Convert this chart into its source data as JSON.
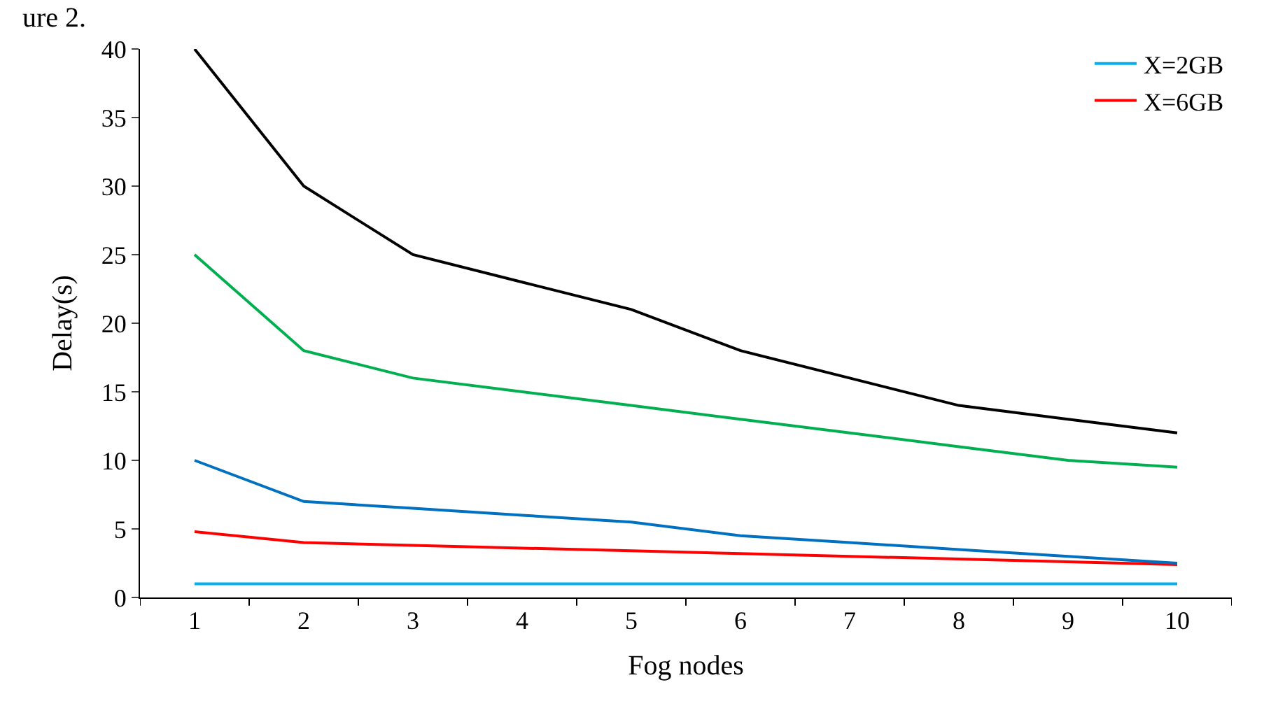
{
  "chart_data": {
    "type": "line",
    "xlabel": "Fog nodes",
    "ylabel": "Delay(s)",
    "annotations": [
      "ure 2."
    ],
    "categories": [
      "1",
      "2",
      "3",
      "4",
      "5",
      "6",
      "7",
      "8",
      "9",
      "10"
    ],
    "ylim": [
      0,
      40
    ],
    "yticks": [
      0,
      5,
      10,
      15,
      20,
      25,
      30,
      35,
      40
    ],
    "legend": "top right",
    "marker": "none",
    "line_style": "solid",
    "series": [
      {
        "name": "X=2GB",
        "color": "#00b0f0",
        "values": [
          1,
          1,
          1,
          1,
          1,
          1,
          1,
          1,
          1,
          1
        ]
      },
      {
        "name": "X=6GB",
        "color": "#ff0000",
        "values": [
          4.8,
          4,
          3.8,
          3.6,
          3.4,
          3.2,
          3,
          2.8,
          2.6,
          2.4
        ]
      },
      {
        "color": "#0070c0",
        "values": [
          10,
          7,
          6.5,
          6,
          5.5,
          4.5,
          4,
          3.5,
          3,
          2.5
        ]
      },
      {
        "color": "#00b050",
        "values": [
          25,
          18,
          16,
          15,
          14,
          13,
          12,
          11,
          10,
          9.5
        ]
      },
      {
        "color": "#000000",
        "values": [
          40,
          30,
          25,
          23,
          21,
          18,
          16,
          14,
          13,
          12
        ]
      }
    ]
  }
}
